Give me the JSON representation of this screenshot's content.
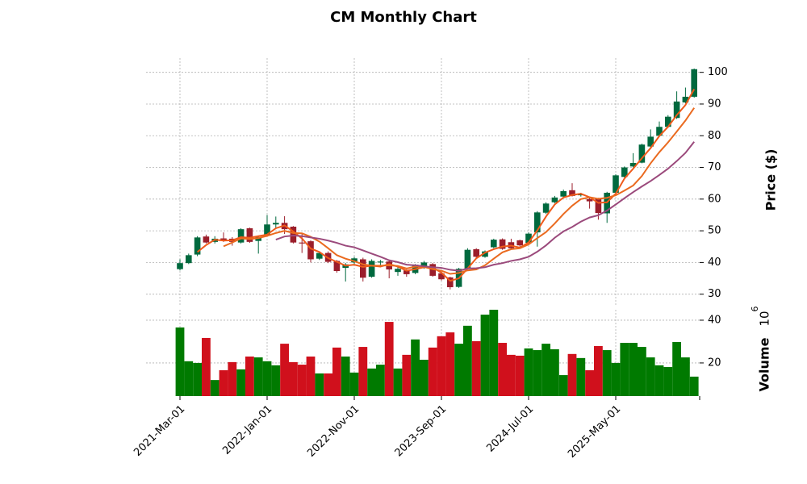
{
  "chart_data": {
    "type": "candlestick",
    "title": "CM Monthly Chart",
    "ylabel": "Price ($)",
    "volume_label": "Volume",
    "volume_scale": {
      "base": "10",
      "exponent": "6"
    },
    "categories": [
      "2021-Mar-01",
      null,
      null,
      null,
      null,
      null,
      null,
      null,
      null,
      null,
      "2022-Jan-01",
      null,
      null,
      null,
      null,
      null,
      null,
      null,
      null,
      null,
      "2022-Nov-01",
      null,
      null,
      null,
      null,
      null,
      null,
      null,
      null,
      null,
      "2023-Sep-01",
      null,
      null,
      null,
      null,
      null,
      null,
      null,
      null,
      null,
      "2024-Jul-01",
      null,
      null,
      null,
      null,
      null,
      null,
      null,
      null,
      null,
      "2025-May-01",
      null,
      null,
      null,
      null,
      null,
      null,
      null,
      null,
      null
    ],
    "open": [
      37.9,
      39.8,
      42.5,
      48.2,
      46.5,
      47.6,
      47.5,
      46.3,
      50.8,
      46.8,
      48.5,
      52,
      52.5,
      51.3,
      46.3,
      46.7,
      41.2,
      43,
      40.5,
      38.3,
      40,
      41,
      35.5,
      40,
      40.3,
      37,
      37.5,
      36.7,
      38.3,
      39.5,
      36.6,
      35.3,
      32.3,
      38,
      44.2,
      41.8,
      44.8,
      47.3,
      46.4,
      47,
      46.2,
      49.5,
      55.7,
      59,
      60.8,
      62.8,
      61.2,
      60,
      60.1,
      55.5,
      62,
      67,
      70.3,
      71.5,
      76.6,
      80,
      82.8,
      85.6,
      90.5,
      92.3
    ],
    "high": [
      41,
      42.8,
      48.3,
      48.8,
      48.3,
      49.5,
      48,
      50.8,
      51,
      48.5,
      55,
      54.5,
      54.6,
      51.5,
      49,
      47,
      43.5,
      43.5,
      40.8,
      39.8,
      41.8,
      41.5,
      41,
      40.8,
      40.8,
      38.5,
      37.8,
      39.5,
      40.5,
      39.8,
      36.8,
      35.5,
      38.3,
      44.5,
      44.5,
      43.8,
      47.5,
      47.6,
      47.5,
      47.2,
      49.5,
      56.2,
      59,
      61,
      63,
      65,
      62,
      60.5,
      60.4,
      62.3,
      67.8,
      70.3,
      74.5,
      77.5,
      82,
      84.5,
      86.5,
      94,
      95.2,
      101.2
    ],
    "low": [
      37.5,
      39.5,
      42,
      46,
      46,
      46.5,
      45.3,
      46,
      46.2,
      42.8,
      48.2,
      50.8,
      49,
      46,
      43,
      40,
      40.8,
      39.8,
      36.8,
      34,
      39.5,
      34,
      35.2,
      38.5,
      35,
      35.8,
      35.5,
      36.3,
      38,
      35.5,
      34.3,
      31.5,
      32,
      37.8,
      41.3,
      41.5,
      44.5,
      44,
      44.2,
      45,
      45.8,
      45,
      55.3,
      58.7,
      60.5,
      60.8,
      60.8,
      57,
      53.5,
      52.5,
      61.8,
      66.8,
      70,
      71.3,
      76.3,
      79.8,
      82.5,
      85.3,
      90.2,
      92
    ],
    "close": [
      39.8,
      42.3,
      47.9,
      46.3,
      47.5,
      47,
      46.5,
      50.5,
      46.5,
      48,
      52,
      52.5,
      50.5,
      46.3,
      46,
      41,
      43,
      40.2,
      37.3,
      39.4,
      41.3,
      35.2,
      40.5,
      40.3,
      37.8,
      38,
      36.3,
      39.3,
      40,
      35.8,
      34.7,
      32.2,
      38,
      44,
      41.8,
      43.5,
      47.2,
      44.3,
      44.5,
      45.4,
      49.1,
      55.8,
      58.6,
      60.5,
      62.5,
      61,
      61.5,
      59.3,
      55.6,
      62,
      67.5,
      70,
      71.4,
      77.2,
      79.7,
      82.8,
      86,
      90.8,
      92.3,
      101
    ],
    "volume": [
      36.6,
      20.8,
      20,
      31.7,
      12,
      16.6,
      20.4,
      17,
      23,
      22.6,
      20.8,
      18.9,
      29,
      20.4,
      19.2,
      23,
      15.1,
      15.1,
      27.2,
      23,
      15.5,
      27.5,
      17.4,
      19.2,
      39.2,
      17.4,
      23.8,
      31,
      21.5,
      27.2,
      32.5,
      34.3,
      29,
      37.4,
      30.2,
      42.6,
      44.9,
      29.4,
      23.8,
      23.4,
      26.8,
      26,
      29,
      26.4,
      14.3,
      24.2,
      22.3,
      16.6,
      27.9,
      26,
      20,
      29.4,
      29.4,
      27.5,
      22.6,
      18.9,
      18.1,
      29.8,
      22.6,
      13.6
    ],
    "moving_averages": [
      {
        "color": "#ef5a1a",
        "values": [
          null,
          null,
          43.3,
          45.5,
          47.2,
          46.9,
          47,
          48,
          47.8,
          48.3,
          48.8,
          50.8,
          51.7,
          49.8,
          47.6,
          44.4,
          43.3,
          41.4,
          40.2,
          39,
          39.3,
          38.6,
          39,
          38.7,
          39.5,
          38.7,
          37.4,
          37.9,
          38.5,
          38.4,
          36.8,
          34.2,
          35,
          38.1,
          41.3,
          43.1,
          44.2,
          45,
          45.3,
          44.7,
          46.3,
          50.1,
          54.5,
          58.3,
          60.5,
          61.3,
          61.7,
          60.6,
          58.8,
          59,
          61.7,
          66.5,
          69.6,
          72.9,
          76.1,
          79.9,
          82.8,
          86.5,
          89.7,
          94.7
        ]
      },
      {
        "color": "#ea6a1f",
        "values": [
          null,
          null,
          null,
          null,
          null,
          45.1,
          46.3,
          47.6,
          47.4,
          47.7,
          48.4,
          49.3,
          50,
          49.3,
          49.2,
          48.1,
          46.6,
          44.5,
          42.3,
          41.2,
          40.4,
          39.4,
          39,
          39,
          39.1,
          38.9,
          38.1,
          38.7,
          38.6,
          37.9,
          37.4,
          36.4,
          36.7,
          37.5,
          37.8,
          39.1,
          41.2,
          43.2,
          44.2,
          44.5,
          45.7,
          47.7,
          49.6,
          52.3,
          55.3,
          57.9,
          60,
          60.6,
          60.1,
          60.4,
          61.2,
          62.7,
          64.3,
          67.3,
          71.3,
          74.8,
          77.9,
          81.3,
          84.8,
          88.8
        ]
      },
      {
        "color": "#9b4a7c",
        "values": [
          null,
          null,
          null,
          null,
          null,
          null,
          null,
          null,
          null,
          null,
          null,
          47.2,
          48.2,
          48.5,
          48.3,
          47.9,
          47.5,
          46.9,
          46.2,
          45.3,
          44.8,
          43.8,
          42.8,
          41.8,
          40.7,
          40.1,
          39.3,
          39.1,
          38.8,
          38.5,
          38.3,
          37.7,
          37.4,
          38.1,
          38.2,
          38.5,
          39.3,
          39.8,
          40.5,
          41,
          41.8,
          43.4,
          45.4,
          47.8,
          49.8,
          51.2,
          52.9,
          54.2,
          54.9,
          56.4,
          58.3,
          60.3,
          62.2,
          64,
          65.7,
          67.6,
          69.6,
          72,
          74.6,
          78.1
        ]
      }
    ],
    "up_color": "#00693e",
    "down_color": "#9b1e2b",
    "volume_up_color": "#007a00",
    "volume_down_color": "#d0101c",
    "ylim": [
      26.1,
      104.5
    ],
    "yticks": [
      30,
      40,
      50,
      60,
      70,
      80,
      90,
      100
    ],
    "volume_ylim": [
      4.5,
      46.4
    ],
    "volume_yticks": [
      20,
      40
    ],
    "grid": true
  }
}
